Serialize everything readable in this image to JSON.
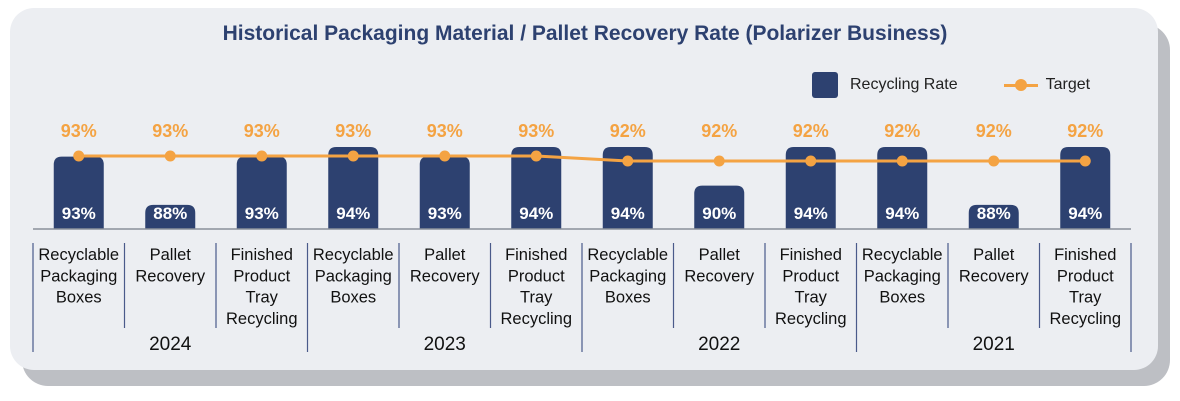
{
  "chart_data": {
    "type": "bar",
    "title": "Historical Packaging Material / Pallet Recovery Rate (Polarizer Business)",
    "categories": [
      {
        "group": "2024",
        "label": [
          "Recyclable",
          "Packaging",
          "Boxes"
        ]
      },
      {
        "group": "2024",
        "label": [
          "Pallet",
          "Recovery"
        ]
      },
      {
        "group": "2024",
        "label": [
          "Finished",
          "Product",
          "Tray",
          "Recycling"
        ]
      },
      {
        "group": "2023",
        "label": [
          "Recyclable",
          "Packaging",
          "Boxes"
        ]
      },
      {
        "group": "2023",
        "label": [
          "Pallet",
          "Recovery"
        ]
      },
      {
        "group": "2023",
        "label": [
          "Finished",
          "Product",
          "Tray",
          "Recycling"
        ]
      },
      {
        "group": "2022",
        "label": [
          "Recyclable",
          "Packaging",
          "Boxes"
        ]
      },
      {
        "group": "2022",
        "label": [
          "Pallet",
          "Recovery"
        ]
      },
      {
        "group": "2022",
        "label": [
          "Finished",
          "Product",
          "Tray",
          "Recycling"
        ]
      },
      {
        "group": "2021",
        "label": [
          "Recyclable",
          "Packaging",
          "Boxes"
        ]
      },
      {
        "group": "2021",
        "label": [
          "Pallet",
          "Recovery"
        ]
      },
      {
        "group": "2021",
        "label": [
          "Finished",
          "Product",
          "Tray",
          "Recycling"
        ]
      }
    ],
    "groups": [
      "2024",
      "2023",
      "2022",
      "2021"
    ],
    "series": [
      {
        "name": "Recycling Rate",
        "kind": "bar",
        "color": "#2d4170",
        "values": [
          93,
          88,
          93,
          94,
          93,
          94,
          94,
          90,
          94,
          94,
          88,
          94
        ]
      },
      {
        "name": "Target",
        "kind": "line",
        "color": "#f4a343",
        "values": [
          93,
          93,
          93,
          93,
          93,
          93,
          92,
          92,
          92,
          92,
          92,
          92
        ]
      }
    ],
    "bar_labels": [
      "93%",
      "88%",
      "93%",
      "94%",
      "93%",
      "94%",
      "94%",
      "90%",
      "94%",
      "94%",
      "88%",
      "94%"
    ],
    "target_labels": [
      "93%",
      "93%",
      "93%",
      "93%",
      "93%",
      "93%",
      "92%",
      "92%",
      "92%",
      "92%",
      "92%",
      "92%"
    ],
    "legend_position": "top-right",
    "grid": false
  }
}
